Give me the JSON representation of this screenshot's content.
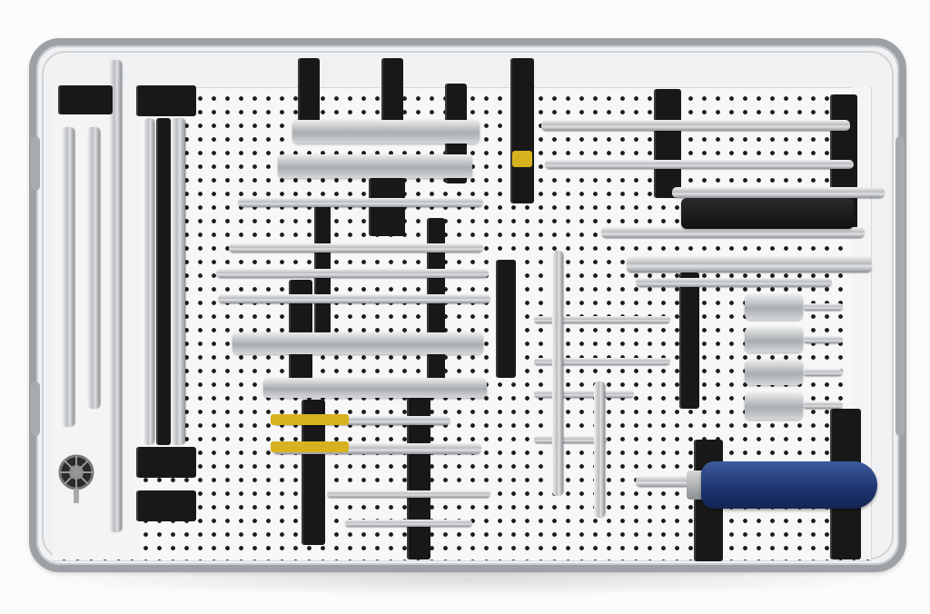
{
  "scene": {
    "subject": "sterilization-tray",
    "colors": {
      "tray_frame": "#9da1a5",
      "board": "#f7f7f7",
      "holes": "#1b1b1b",
      "brackets": "#181818",
      "steel": "#b9bcbf",
      "handle": "#1d3470",
      "accent_tip": "#d8b21e"
    }
  }
}
